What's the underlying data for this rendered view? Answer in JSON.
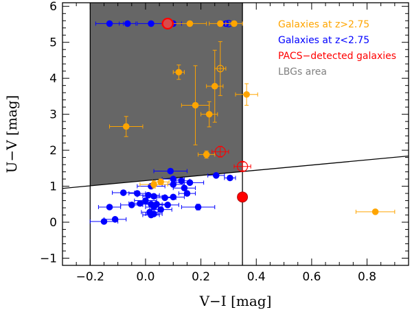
{
  "chart_data": {
    "type": "scatter",
    "title": "",
    "xlabel": "V−I [mag]",
    "ylabel": "U−V [mag]",
    "xlim": [
      -0.3,
      0.95
    ],
    "ylim": [
      -1.2,
      6.1
    ],
    "x_ticks": [
      -0.2,
      0.0,
      0.2,
      0.4,
      0.6,
      0.8
    ],
    "x_tick_labels": [
      "−0.2",
      "0.0",
      "0.2",
      "0.4",
      "0.6",
      "0.8"
    ],
    "y_ticks": [
      -1,
      0,
      1,
      2,
      3,
      4,
      5,
      6
    ],
    "y_tick_labels": [
      "−1",
      "0",
      "1",
      "2",
      "3",
      "4",
      "5",
      "6"
    ],
    "legend": [
      {
        "label": "Galaxies at z>2.75",
        "color": "#ffa500"
      },
      {
        "label": "Galaxies at z<2.75",
        "color": "#0000ff"
      },
      {
        "label": "PACS−detected galaxies",
        "color": "#ff0000"
      },
      {
        "label": "LBGs area",
        "color": "#808080"
      }
    ],
    "legend_position": "top-right",
    "lbg_area": {
      "x_min": -0.2,
      "x_max": 0.35,
      "selection_line": {
        "x1": -0.3,
        "y1": 0.94,
        "x2": 0.95,
        "y2": 1.84
      },
      "fill": "#666666"
    },
    "series": [
      {
        "name": "Galaxies at z>2.75",
        "color": "#ffa500",
        "points": [
          {
            "x": -0.07,
            "y": 2.66,
            "xerr": 0.06,
            "yerr": 0.28
          },
          {
            "x": 0.12,
            "y": 4.17,
            "xerr": 0.02,
            "yerr": 0.2
          },
          {
            "x": 0.18,
            "y": 3.25,
            "xerr": 0.05,
            "yerr": 1.1
          },
          {
            "x": 0.23,
            "y": 3.0,
            "xerr": 0.03,
            "yerr": 0.35
          },
          {
            "x": 0.25,
            "y": 3.78,
            "xerr": 0.03,
            "yerr": 1.0
          },
          {
            "x": 0.27,
            "y": 4.27,
            "xerr": 0.02,
            "yerr": 0.75,
            "hollow": true
          },
          {
            "x": 0.365,
            "y": 3.55,
            "xerr": 0.04,
            "yerr": 0.3
          },
          {
            "x": 0.22,
            "y": 1.88,
            "xerr": 0.03,
            "yerr": 0.1
          },
          {
            "x": 0.03,
            "y": 1.05,
            "xerr": 0.05,
            "yerr": 0.1
          },
          {
            "x": 0.055,
            "y": 1.12,
            "xerr": 0.03,
            "yerr": 0.08
          },
          {
            "x": 0.83,
            "y": 0.29,
            "xerr": 0.07,
            "yerr": 0.05
          },
          {
            "x": 0.16,
            "y": 5.52,
            "xerr": 0.06,
            "yerr": 0.0
          },
          {
            "x": 0.27,
            "y": 5.52,
            "xerr": 0.04,
            "yerr": 0.0
          },
          {
            "x": 0.32,
            "y": 5.52,
            "xerr": 0.03,
            "yerr": 0.0
          }
        ]
      },
      {
        "name": "Galaxies at z<2.75",
        "color": "#0000ff",
        "points": [
          {
            "x": -0.13,
            "y": 5.52,
            "xerr": 0.05,
            "yerr": 0.0
          },
          {
            "x": -0.065,
            "y": 5.52,
            "xerr": 0.03,
            "yerr": 0.0
          },
          {
            "x": 0.02,
            "y": 5.52,
            "xerr": 0.05,
            "yerr": 0.0
          },
          {
            "x": 0.1,
            "y": 5.52,
            "xerr": 0.03,
            "yerr": 0.0
          },
          {
            "x": 0.29,
            "y": 5.52,
            "xerr": 0.02,
            "yerr": 0.0
          },
          {
            "x": 0.3,
            "y": 5.52,
            "xerr": 0.02,
            "yerr": 0.0,
            "hollow": true
          },
          {
            "x": 0.09,
            "y": 1.42,
            "xerr": 0.06,
            "yerr": 0.06
          },
          {
            "x": 0.255,
            "y": 1.3,
            "xerr": 0.03,
            "yerr": 0.05
          },
          {
            "x": 0.305,
            "y": 1.23,
            "xerr": 0.02,
            "yerr": 0.05
          },
          {
            "x": 0.1,
            "y": 1.2,
            "xerr": 0.04,
            "yerr": 0.05
          },
          {
            "x": 0.16,
            "y": 1.1,
            "xerr": 0.05,
            "yerr": 0.05
          },
          {
            "x": 0.13,
            "y": 1.15,
            "xerr": 0.03,
            "yerr": 0.05
          },
          {
            "x": 0.02,
            "y": 1.0,
            "xerr": 0.05,
            "yerr": 0.05
          },
          {
            "x": 0.1,
            "y": 1.05,
            "xerr": 0.04,
            "yerr": 0.05
          },
          {
            "x": 0.14,
            "y": 0.95,
            "xerr": 0.04,
            "yerr": 0.05
          },
          {
            "x": 0.15,
            "y": 0.8,
            "xerr": 0.03,
            "yerr": 0.05
          },
          {
            "x": -0.03,
            "y": 0.8,
            "xerr": 0.03,
            "yerr": 0.05
          },
          {
            "x": -0.08,
            "y": 0.82,
            "xerr": 0.04,
            "yerr": 0.05
          },
          {
            "x": 0.01,
            "y": 0.75,
            "xerr": 0.04,
            "yerr": 0.05
          },
          {
            "x": 0.03,
            "y": 0.72,
            "xerr": 0.04,
            "yerr": 0.05
          },
          {
            "x": 0.07,
            "y": 0.68,
            "xerr": 0.04,
            "yerr": 0.05
          },
          {
            "x": 0.1,
            "y": 0.7,
            "xerr": 0.04,
            "yerr": 0.05
          },
          {
            "x": 0.0,
            "y": 0.6,
            "xerr": 0.04,
            "yerr": 0.05
          },
          {
            "x": -0.02,
            "y": 0.52,
            "xerr": 0.04,
            "yerr": 0.05
          },
          {
            "x": -0.05,
            "y": 0.48,
            "xerr": 0.04,
            "yerr": 0.05
          },
          {
            "x": 0.02,
            "y": 0.5,
            "xerr": 0.04,
            "yerr": 0.05
          },
          {
            "x": 0.04,
            "y": 0.5,
            "xerr": 0.04,
            "yerr": 0.05
          },
          {
            "x": 0.08,
            "y": 0.48,
            "xerr": 0.04,
            "yerr": 0.05
          },
          {
            "x": 0.03,
            "y": 0.42,
            "xerr": 0.03,
            "yerr": 0.05
          },
          {
            "x": 0.055,
            "y": 0.35,
            "xerr": 0.04,
            "yerr": 0.05
          },
          {
            "x": -0.13,
            "y": 0.42,
            "xerr": 0.04,
            "yerr": 0.05
          },
          {
            "x": 0.015,
            "y": 0.28,
            "xerr": 0.03,
            "yerr": 0.05
          },
          {
            "x": 0.03,
            "y": 0.23,
            "xerr": 0.03,
            "yerr": 0.05
          },
          {
            "x": 0.02,
            "y": 0.2,
            "xerr": 0.03,
            "yerr": 0.05
          },
          {
            "x": 0.19,
            "y": 0.42,
            "xerr": 0.06,
            "yerr": 0.08
          },
          {
            "x": -0.11,
            "y": 0.08,
            "xerr": 0.04,
            "yerr": 0.05
          },
          {
            "x": -0.15,
            "y": 0.02,
            "xerr": 0.05,
            "yerr": 0.05
          }
        ]
      },
      {
        "name": "PACS−detected galaxies",
        "color": "#ff0000",
        "points": [
          {
            "x": 0.08,
            "y": 5.52,
            "xerr": 0.02,
            "yerr": 0.0,
            "border": "#ff0000"
          },
          {
            "x": 0.27,
            "y": 1.96,
            "xerr": 0.03,
            "yerr": 0.15,
            "hollow": true
          },
          {
            "x": 0.35,
            "y": 1.55,
            "xerr": 0.03,
            "yerr": 0.12,
            "hollow": true
          },
          {
            "x": 0.35,
            "y": 0.7,
            "xerr": 0.0,
            "yerr": 0.0
          }
        ]
      }
    ]
  }
}
